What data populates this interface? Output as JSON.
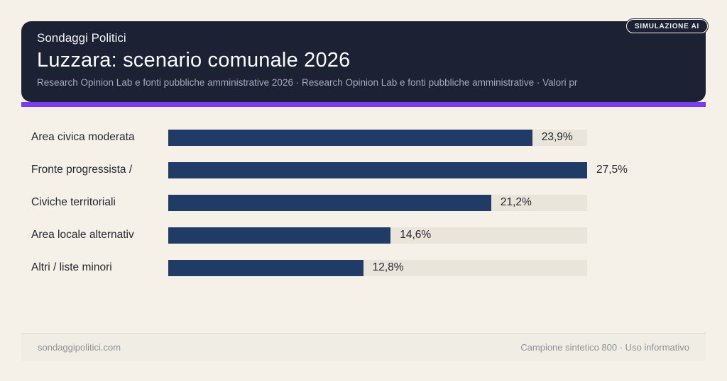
{
  "badge": {
    "label": "SIMULAZIONE AI"
  },
  "header": {
    "kicker": "Sondaggi Politici",
    "title": "Luzzara: scenario comunale 2026",
    "subtitle": "Research Opinion Lab e fonti pubbliche amministrative 2026 · Research Opinion Lab e fonti pubbliche amministrative · Valori pr"
  },
  "chart_data": {
    "type": "bar",
    "orientation": "horizontal",
    "title": "Luzzara: scenario comunale 2026",
    "categories": [
      "Area civica moderata",
      "Fronte progressista /",
      "Civiche territoriali",
      "Area locale alternativ",
      "Altri / liste minori"
    ],
    "values": [
      23.9,
      27.5,
      21.2,
      14.6,
      12.8
    ],
    "value_labels": [
      "23,9%",
      "27,5%",
      "21,2%",
      "14,6%",
      "12,8%"
    ],
    "unit": "%",
    "xlim": [
      0,
      27.5
    ],
    "grid": false,
    "legend": false
  },
  "footer": {
    "left": "sondaggipolitici.com",
    "right": "Campione sintetico 800 · Uso informativo"
  },
  "colors": {
    "page-bg": "#f5f1e9",
    "card-bg": "#1c2134",
    "accent": "#7c3aed",
    "bar": "#1f3b66",
    "track": "#e9e5db"
  }
}
